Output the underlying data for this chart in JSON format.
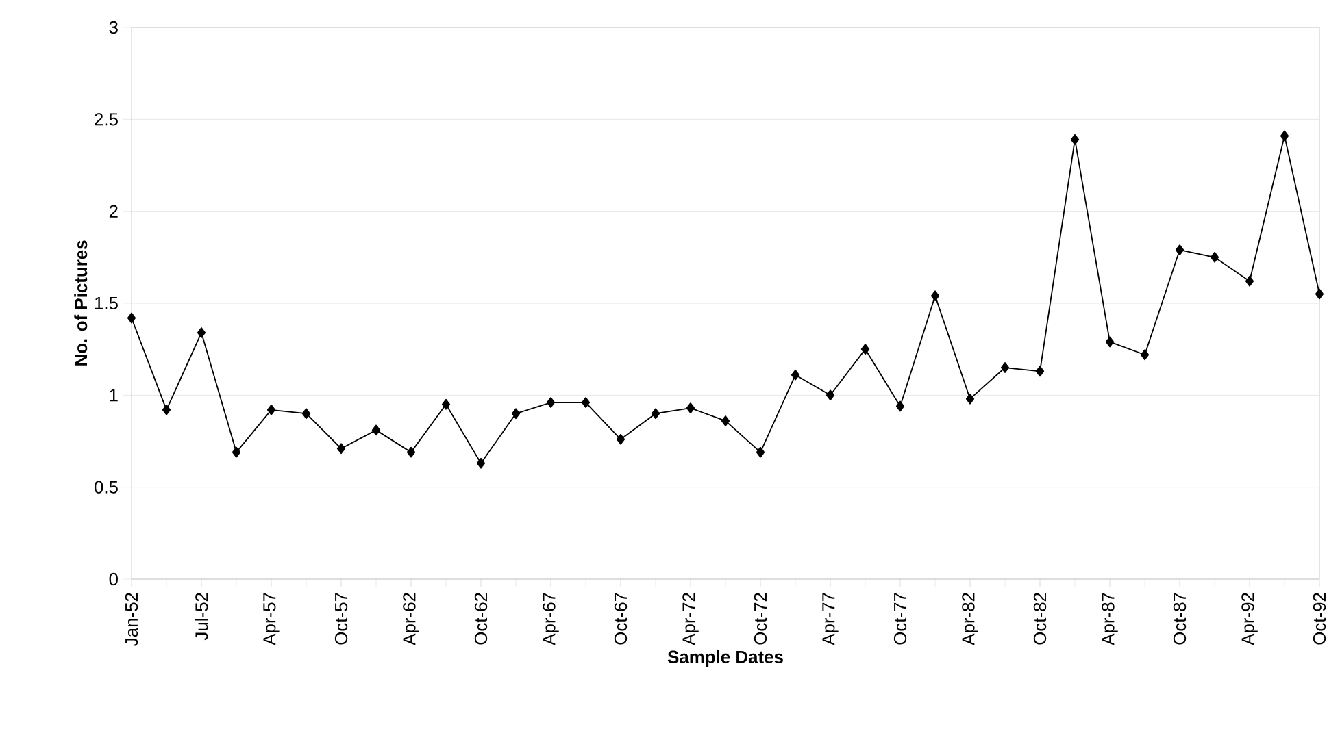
{
  "chart_data": {
    "type": "line",
    "xlabel": "Sample Dates",
    "ylabel": "No. of Pictures",
    "categories": [
      "Jan-52",
      null,
      "Jul-52",
      null,
      "Apr-57",
      null,
      "Oct-57",
      null,
      "Apr-62",
      null,
      "Oct-62",
      null,
      "Apr-67",
      null,
      "Oct-67",
      null,
      "Apr-72",
      null,
      "Oct-72",
      null,
      "Apr-77",
      null,
      "Oct-77",
      null,
      "Apr-82",
      null,
      "Oct-82",
      null,
      "Apr-87",
      null,
      "Oct-87",
      null,
      "Apr-92",
      null,
      "Oct-92"
    ],
    "series": [
      {
        "color": "#000000",
        "values": [
          1.42,
          0.92,
          1.34,
          0.69,
          0.92,
          0.9,
          0.71,
          0.81,
          0.69,
          0.95,
          0.63,
          0.9,
          0.96,
          0.96,
          0.76,
          0.9,
          0.93,
          0.86,
          0.69,
          1.11,
          1.0,
          1.25,
          0.94,
          1.54,
          0.98,
          1.15,
          1.13,
          2.39,
          1.29,
          1.22,
          1.79,
          1.75,
          1.62,
          2.41,
          1.55
        ]
      }
    ],
    "ylim": [
      0,
      3
    ],
    "yticks": [
      0,
      0.5,
      1,
      1.5,
      2,
      2.5,
      3
    ],
    "grid": "y",
    "marker": "diamond",
    "line_style": "solid"
  }
}
